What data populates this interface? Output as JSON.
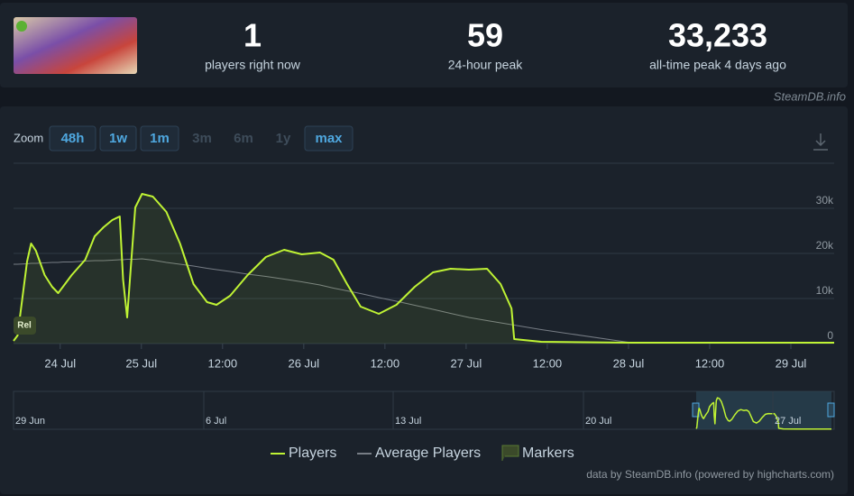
{
  "header": {
    "stats": [
      {
        "value": "1",
        "label": "players right now"
      },
      {
        "value": "59",
        "label": "24-hour peak"
      },
      {
        "value": "33,233",
        "label": "all-time peak 4 days ago"
      }
    ],
    "credit": "SteamDB.info"
  },
  "zoom": {
    "label": "Zoom",
    "buttons": [
      "48h",
      "1w",
      "1m",
      "3m",
      "6m",
      "1y",
      "max"
    ]
  },
  "chart_data": {
    "type": "line",
    "x": [
      -18.9,
      -18.3,
      -16.9,
      -16.3,
      -15.6,
      -14.3,
      -13.2,
      -12.3,
      -11.6,
      -10.3,
      -8.3,
      -6.9,
      -5.6,
      -4.3,
      -3.2,
      -2.7,
      -2.1,
      -1.6,
      -0.9,
      0.1,
      1.7,
      3.7,
      5.7,
      7.7,
      9.7,
      11.1,
      13.1,
      15.7,
      18.4,
      21.1,
      23.7,
      26.4,
      28.4,
      30.4,
      32.4,
      35.1,
      37.7,
      40.4,
      43.1,
      45.7,
      48.4,
      51.1,
      53.1,
      54.7,
      55.1,
      59.1,
      72.4,
      102.4
    ],
    "series": [
      {
        "name": "Players",
        "color": "#bff334",
        "area": true,
        "values": [
          600,
          1800,
          18200,
          22200,
          20600,
          15200,
          12600,
          11200,
          12600,
          15200,
          18600,
          23800,
          25800,
          27400,
          28200,
          14200,
          5800,
          16200,
          30200,
          33200,
          32600,
          29200,
          22200,
          13200,
          9200,
          8600,
          10600,
          15200,
          19200,
          20800,
          19800,
          20200,
          18600,
          13200,
          8200,
          6600,
          8600,
          12600,
          15800,
          16600,
          16400,
          16600,
          13200,
          7800,
          1000,
          400,
          200,
          200
        ]
      },
      {
        "name": "Average Players",
        "color": "#777d85",
        "area": false,
        "values": [
          17600,
          17600,
          17700,
          17800,
          17800,
          17900,
          18000,
          18000,
          18100,
          18100,
          18300,
          18400,
          18400,
          18500,
          18600,
          18600,
          18700,
          18700,
          18700,
          18800,
          18500,
          18000,
          17600,
          17200,
          16700,
          16400,
          16000,
          15400,
          14900,
          14300,
          13700,
          13000,
          12300,
          11700,
          11100,
          10200,
          9400,
          8500,
          7600,
          6700,
          5800,
          5100,
          4600,
          4200,
          4100,
          3100,
          200,
          200
        ]
      }
    ],
    "markers_label": "Markers",
    "annotation": "Rel",
    "xlim": [
      -18.9,
      102.4
    ],
    "xticks": [
      {
        "value": -12,
        "label": "24 Jul"
      },
      {
        "value": 0,
        "label": "25 Jul"
      },
      {
        "value": 12,
        "label": "12:00"
      },
      {
        "value": 24,
        "label": "26 Jul"
      },
      {
        "value": 36,
        "label": "12:00"
      },
      {
        "value": 48,
        "label": "27 Jul"
      },
      {
        "value": 60,
        "label": "12:00"
      },
      {
        "value": 72,
        "label": "28 Jul"
      },
      {
        "value": 84,
        "label": "12:00"
      },
      {
        "value": 96,
        "label": "29 Jul"
      }
    ],
    "ylim": [
      0,
      40000
    ],
    "yticks": [
      0,
      {
        "value": 10000,
        "label": "10k"
      },
      {
        "value": 20000,
        "label": "20k"
      },
      {
        "value": 30000,
        "label": "30k"
      }
    ],
    "grid": true,
    "navigator": {
      "labels": [
        "29 Jun",
        "6 Jul",
        "13 Jul",
        "20 Jul",
        "27 Jul"
      ]
    },
    "footer": "data by SteamDB.info (powered by highcharts.com)"
  }
}
